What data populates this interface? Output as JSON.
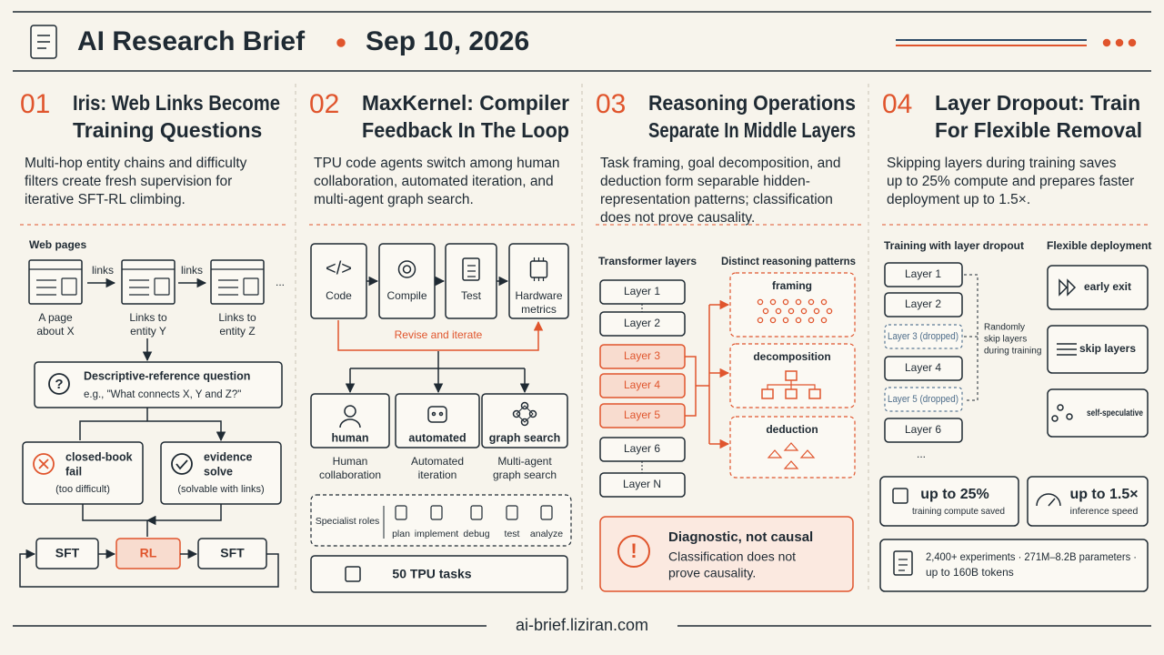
{
  "header": {
    "title": "AI Research Brief",
    "date": "Sep 10, 2026"
  },
  "panels": [
    {
      "number": "01",
      "title": [
        "Iris: Web Links Become",
        "Training Questions"
      ],
      "summary": [
        "Multi-hop entity chains and difficulty",
        "filters create fresh supervision for",
        "iterative SFT-RL climbing."
      ],
      "web_pages_label": "Web pages",
      "link_labels": [
        "links",
        "links"
      ],
      "ellipsis": "...",
      "pages": [
        [
          "A page",
          "about X"
        ],
        [
          "Links to",
          "entity Y"
        ],
        [
          "Links to",
          "entity Z"
        ]
      ],
      "question": {
        "title": "Descriptive-reference question",
        "example": "e.g., \"What connects X, Y and Z?\""
      },
      "outcomes": [
        {
          "title": [
            "closed-book",
            "fail"
          ],
          "note": "(too difficult)"
        },
        {
          "title": [
            "evidence",
            "solve"
          ],
          "note": "(solvable with links)"
        }
      ],
      "loop": [
        "SFT",
        "RL",
        "SFT"
      ]
    },
    {
      "number": "02",
      "title": [
        "MaxKernel: Compiler",
        "Feedback In The Loop"
      ],
      "summary": [
        "TPU code agents switch among human",
        "collaboration, automated iteration, and",
        "multi-agent graph search."
      ],
      "tools": [
        [
          "Code"
        ],
        [
          "Compile"
        ],
        [
          "Test"
        ],
        [
          "Hardware",
          "metrics"
        ]
      ],
      "feedback": "Revise and iterate",
      "modes": [
        {
          "label": "human",
          "caption": [
            "Human",
            "collaboration"
          ]
        },
        {
          "label": "automated",
          "caption": [
            "Automated",
            "iteration"
          ]
        },
        {
          "label": "graph search",
          "caption": [
            "Multi-agent",
            "graph search"
          ]
        }
      ],
      "roles_label": "Specialist roles",
      "roles": [
        "plan",
        "implement",
        "debug",
        "test",
        "analyze"
      ],
      "tasks": "50 TPU tasks"
    },
    {
      "number": "03",
      "title": [
        "Reasoning Operations",
        "Separate In Middle Layers"
      ],
      "summary": [
        "Task framing, goal decomposition, and",
        "deduction form separable hidden-",
        "representation patterns; classification",
        "does not prove causality."
      ],
      "layers_label": "Transformer layers",
      "patterns_label": "Distinct reasoning patterns",
      "layers": [
        "Layer 1",
        "Layer 2",
        "Layer 3",
        "Layer 4",
        "Layer 5",
        "Layer 6",
        "Layer N"
      ],
      "patterns": [
        "framing",
        "decomposition",
        "deduction"
      ],
      "caveat": {
        "title": "Diagnostic, not causal",
        "text": [
          "Classification does not",
          "prove causality."
        ]
      }
    },
    {
      "number": "04",
      "title": [
        "Layer Dropout: Train",
        "For Flexible Removal"
      ],
      "summary": [
        "Skipping layers during training saves",
        "up to 25% compute and prepares faster",
        "deployment up to 1.5×."
      ],
      "training_label": "Training with layer dropout",
      "deployment_label": "Flexible deployment",
      "layers": [
        "Layer 1",
        "Layer 2",
        "Layer 3 (dropped)",
        "Layer 4",
        "Layer 5 (dropped)",
        "Layer 6"
      ],
      "ellipsis": "...",
      "dropout_note": [
        "Randomly",
        "skip layers",
        "during training"
      ],
      "deployment": [
        "early exit",
        "skip layers",
        "self-speculative"
      ],
      "stats": [
        {
          "value": "up to 25%",
          "label": "training compute saved"
        },
        {
          "value": "up to 1.5×",
          "label": "inference speed"
        }
      ],
      "scale": [
        "2,400+ experiments · 271M–8.2B parameters ·",
        "up to 160B tokens"
      ]
    }
  ],
  "footer": "ai-brief.liziran.com"
}
